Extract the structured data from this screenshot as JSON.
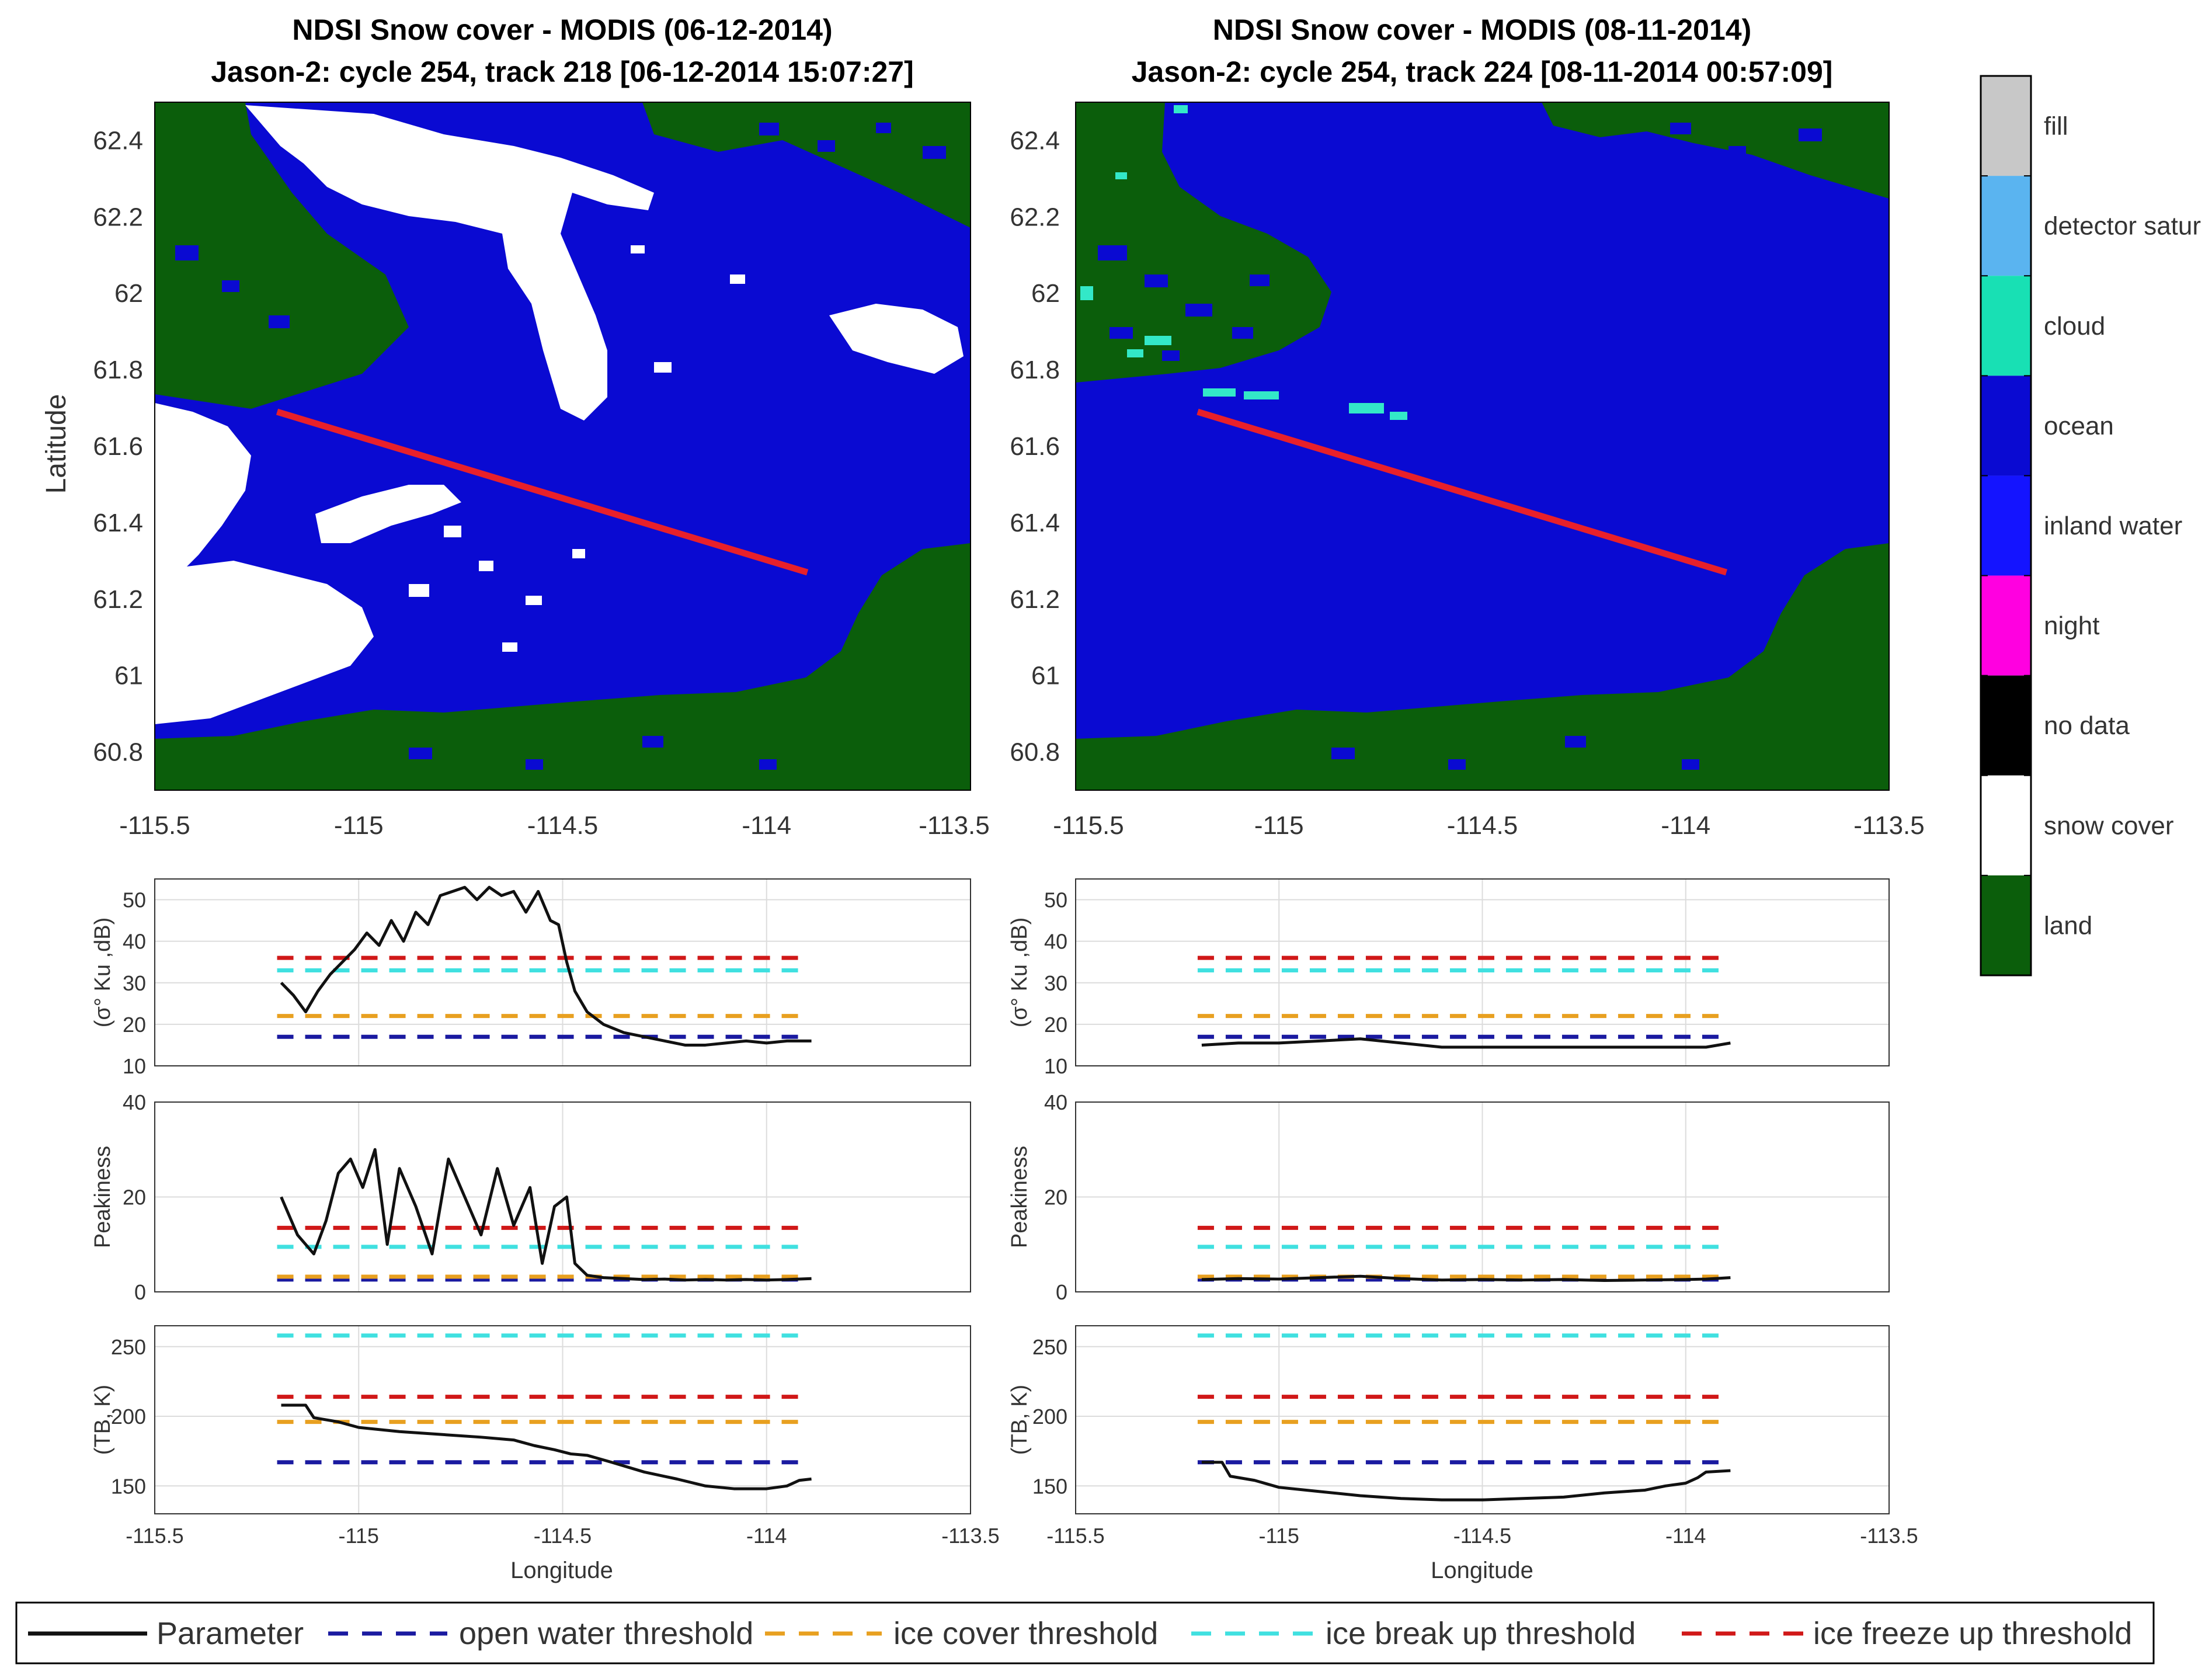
{
  "colors": {
    "land": "#0b5e0b",
    "ocean": "#0a0ad2",
    "snow": "#ffffff",
    "cloud": "#33e8c8",
    "track": "#e8202a",
    "parameter": "#111111",
    "open_water": "#1a1aa0",
    "ice_cover": "#e8a020",
    "ice_breakup": "#40e0e0",
    "ice_freezeup": "#d01818"
  },
  "maps": [
    {
      "title_line1": "NDSI Snow cover - MODIS (06-12-2014)",
      "title_line2": "Jason-2: cycle 254, track 218 [06-12-2014 15:07:27]",
      "ylabel": "Latitude",
      "xlim": [
        -115.5,
        -113.5
      ],
      "ylim": [
        60.7,
        62.5
      ],
      "xticks": [
        "-115.5",
        "-115",
        "-114.5",
        "-114",
        "-113.5"
      ],
      "yticks": [
        "62.4",
        "62.2",
        "62",
        "61.8",
        "61.6",
        "61.4",
        "61.2",
        "61",
        "60.8"
      ],
      "track": {
        "lon": [
          -115.2,
          -113.9
        ],
        "lat": [
          61.69,
          61.27
        ]
      },
      "snow": true,
      "cloud": false
    },
    {
      "title_line1": "NDSI Snow cover - MODIS (08-11-2014)",
      "title_line2": "Jason-2: cycle 254, track 224 [08-11-2014 00:57:09]",
      "ylabel": "",
      "xlim": [
        -115.5,
        -113.5
      ],
      "ylim": [
        60.7,
        62.5
      ],
      "xticks": [
        "-115.5",
        "-115",
        "-114.5",
        "-114",
        "-113.5"
      ],
      "yticks": [
        "62.4",
        "62.2",
        "62",
        "61.8",
        "61.6",
        "61.4",
        "61.2",
        "61",
        "60.8"
      ],
      "track": {
        "lon": [
          -115.2,
          -113.9
        ],
        "lat": [
          61.69,
          61.27
        ]
      },
      "snow": false,
      "cloud": true
    }
  ],
  "colorbar": {
    "labels": [
      "fill",
      "detector satur",
      "cloud",
      "ocean",
      "inland water",
      "night",
      "no data",
      "snow cover",
      "land"
    ],
    "colors": [
      "#c8c8c8",
      "#5ab4f0",
      "#18e0b4",
      "#0a0ad2",
      "#1414ff",
      "#ff00e0",
      "#000000",
      "#ffffff",
      "#0b5e0b"
    ]
  },
  "xlabel": "Longitude",
  "xticks_small": [
    "-115.5",
    "-115",
    "-114.5",
    "-114",
    "-113.5"
  ],
  "chart_data": [
    {
      "type": "line",
      "panel": "left-sigma0",
      "ylabel": "(σ° Ku ,dB)",
      "xlim": [
        -115.5,
        -113.5
      ],
      "ylim": [
        10,
        55
      ],
      "yticks": [
        "50",
        "40",
        "30",
        "20",
        "10"
      ],
      "thresholds": {
        "ice_freezeup": 36,
        "ice_breakup": 33,
        "ice_cover": 22,
        "open_water": 17
      },
      "x": [
        -115.19,
        -115.16,
        -115.13,
        -115.1,
        -115.07,
        -115.04,
        -115.01,
        -114.98,
        -114.95,
        -114.92,
        -114.89,
        -114.86,
        -114.83,
        -114.8,
        -114.77,
        -114.74,
        -114.71,
        -114.68,
        -114.65,
        -114.62,
        -114.59,
        -114.56,
        -114.53,
        -114.51,
        -114.49,
        -114.47,
        -114.44,
        -114.4,
        -114.35,
        -114.3,
        -114.25,
        -114.2,
        -114.15,
        -114.1,
        -114.05,
        -114.0,
        -113.95,
        -113.89
      ],
      "y": [
        30,
        27,
        23,
        28,
        32,
        35,
        38,
        42,
        39,
        45,
        40,
        47,
        44,
        51,
        52,
        53,
        50,
        53,
        51,
        52,
        47,
        52,
        45,
        44,
        35,
        28,
        23,
        20,
        18,
        17,
        16,
        15,
        15,
        15.5,
        16,
        15.5,
        16,
        16
      ]
    },
    {
      "type": "line",
      "panel": "left-peakiness",
      "ylabel": "Peakiness",
      "xlim": [
        -115.5,
        -113.5
      ],
      "ylim": [
        0,
        40
      ],
      "yticks": [
        "40",
        "20",
        "0"
      ],
      "thresholds": {
        "ice_freezeup": 13.5,
        "ice_breakup": 9.5,
        "ice_cover": 3.2,
        "open_water": 2.6
      },
      "x": [
        -115.19,
        -115.15,
        -115.11,
        -115.08,
        -115.05,
        -115.02,
        -114.99,
        -114.96,
        -114.93,
        -114.9,
        -114.86,
        -114.82,
        -114.78,
        -114.74,
        -114.7,
        -114.66,
        -114.62,
        -114.58,
        -114.55,
        -114.52,
        -114.49,
        -114.47,
        -114.44,
        -114.4,
        -114.35,
        -114.3,
        -114.25,
        -114.2,
        -114.15,
        -114.1,
        -114.05,
        -114.0,
        -113.95,
        -113.89
      ],
      "y": [
        20,
        12,
        8,
        15,
        25,
        28,
        22,
        30,
        10,
        26,
        18,
        8,
        28,
        20,
        12,
        26,
        14,
        22,
        6,
        18,
        20,
        6,
        3.5,
        3,
        2.8,
        2.6,
        2.7,
        2.5,
        2.6,
        2.5,
        2.6,
        2.5,
        2.6,
        2.8
      ]
    },
    {
      "type": "line",
      "panel": "left-tb",
      "ylabel": "(TB, K)",
      "xlim": [
        -115.5,
        -113.5
      ],
      "ylim": [
        130,
        265
      ],
      "yticks": [
        "250",
        "200",
        "150"
      ],
      "thresholds": {
        "ice_breakup": 258,
        "ice_freezeup": 214,
        "ice_cover": 196,
        "open_water": 167
      },
      "x": [
        -115.19,
        -115.13,
        -115.11,
        -115.05,
        -115.0,
        -114.9,
        -114.8,
        -114.7,
        -114.62,
        -114.57,
        -114.52,
        -114.48,
        -114.44,
        -114.38,
        -114.3,
        -114.22,
        -114.15,
        -114.08,
        -114.0,
        -113.95,
        -113.92,
        -113.89
      ],
      "y": [
        208,
        208,
        199,
        196,
        192,
        189,
        187,
        185,
        183,
        179,
        176,
        173,
        172,
        167,
        160,
        155,
        150,
        148,
        148,
        150,
        154,
        155
      ]
    },
    {
      "type": "line",
      "panel": "right-sigma0",
      "ylabel": "(σ° Ku ,dB)",
      "xlim": [
        -115.5,
        -113.5
      ],
      "ylim": [
        10,
        55
      ],
      "yticks": [
        "50",
        "40",
        "30",
        "20",
        "10"
      ],
      "thresholds": {
        "ice_freezeup": 36,
        "ice_breakup": 33,
        "ice_cover": 22,
        "open_water": 17
      },
      "x": [
        -115.19,
        -115.1,
        -115.0,
        -114.9,
        -114.8,
        -114.7,
        -114.6,
        -114.5,
        -114.4,
        -114.3,
        -114.2,
        -114.1,
        -114.0,
        -113.95,
        -113.89
      ],
      "y": [
        15,
        15.5,
        15.5,
        16,
        16.5,
        15.5,
        14.5,
        14.5,
        14.5,
        14.5,
        14.5,
        14.5,
        14.5,
        14.5,
        15.5
      ]
    },
    {
      "type": "line",
      "panel": "right-peakiness",
      "ylabel": "Peakiness",
      "xlim": [
        -115.5,
        -113.5
      ],
      "ylim": [
        0,
        40
      ],
      "yticks": [
        "40",
        "20",
        "0"
      ],
      "thresholds": {
        "ice_freezeup": 13.5,
        "ice_breakup": 9.5,
        "ice_cover": 3.2,
        "open_water": 2.6
      },
      "x": [
        -115.19,
        -115.1,
        -115.0,
        -114.9,
        -114.8,
        -114.7,
        -114.6,
        -114.5,
        -114.4,
        -114.3,
        -114.2,
        -114.1,
        -114.0,
        -113.95,
        -113.89
      ],
      "y": [
        2.6,
        2.8,
        2.7,
        3,
        3.3,
        2.8,
        2.5,
        2.6,
        2.5,
        2.6,
        2.4,
        2.5,
        2.6,
        2.7,
        3
      ]
    },
    {
      "type": "line",
      "panel": "right-tb",
      "ylabel": "(TB, K)",
      "xlim": [
        -115.5,
        -113.5
      ],
      "ylim": [
        130,
        265
      ],
      "yticks": [
        "250",
        "200",
        "150"
      ],
      "thresholds": {
        "ice_breakup": 258,
        "ice_freezeup": 214,
        "ice_cover": 196,
        "open_water": 167
      },
      "x": [
        -115.19,
        -115.14,
        -115.12,
        -115.06,
        -115.0,
        -114.9,
        -114.8,
        -114.7,
        -114.6,
        -114.5,
        -114.4,
        -114.3,
        -114.2,
        -114.1,
        -114.05,
        -114.0,
        -113.97,
        -113.95,
        -113.89
      ],
      "y": [
        167,
        167,
        157,
        154,
        149,
        146,
        143,
        141,
        140,
        140,
        141,
        142,
        145,
        147,
        150,
        152,
        156,
        160,
        161
      ]
    }
  ],
  "legend": {
    "items": [
      {
        "label": "Parameter",
        "key": "parameter",
        "dashed": false
      },
      {
        "label": "open water threshold",
        "key": "open_water",
        "dashed": true
      },
      {
        "label": "ice cover threshold",
        "key": "ice_cover",
        "dashed": true
      },
      {
        "label": "ice break up threshold",
        "key": "ice_breakup",
        "dashed": true
      },
      {
        "label": "ice freeze up threshold",
        "key": "ice_freezeup",
        "dashed": true
      }
    ]
  }
}
